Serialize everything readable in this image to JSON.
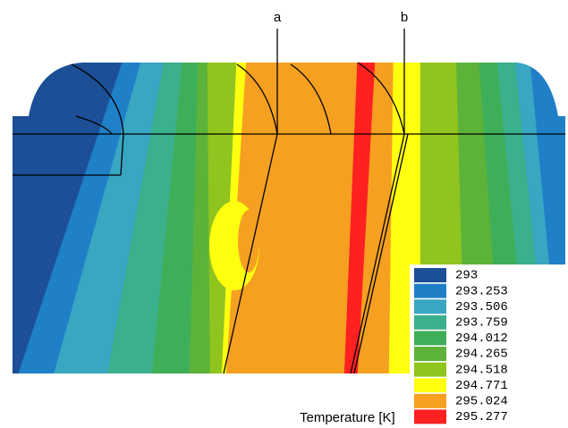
{
  "figure": {
    "labels": [
      "a",
      "b"
    ],
    "legend": {
      "title": "Temperature [K]",
      "levels": [
        {
          "value": 293,
          "color": "#1c4f95"
        },
        {
          "value": 293.253,
          "color": "#1f80c8"
        },
        {
          "value": 293.506,
          "color": "#39a6c2"
        },
        {
          "value": 293.759,
          "color": "#3bb08c"
        },
        {
          "value": 294.012,
          "color": "#3fae58"
        },
        {
          "value": 294.265,
          "color": "#5db33a"
        },
        {
          "value": 294.518,
          "color": "#90c41f"
        },
        {
          "value": 294.771,
          "color": "#ffff10"
        },
        {
          "value": 295.024,
          "color": "#f5a020"
        },
        {
          "value": 295.277,
          "color": "#ff2020"
        }
      ]
    }
  }
}
